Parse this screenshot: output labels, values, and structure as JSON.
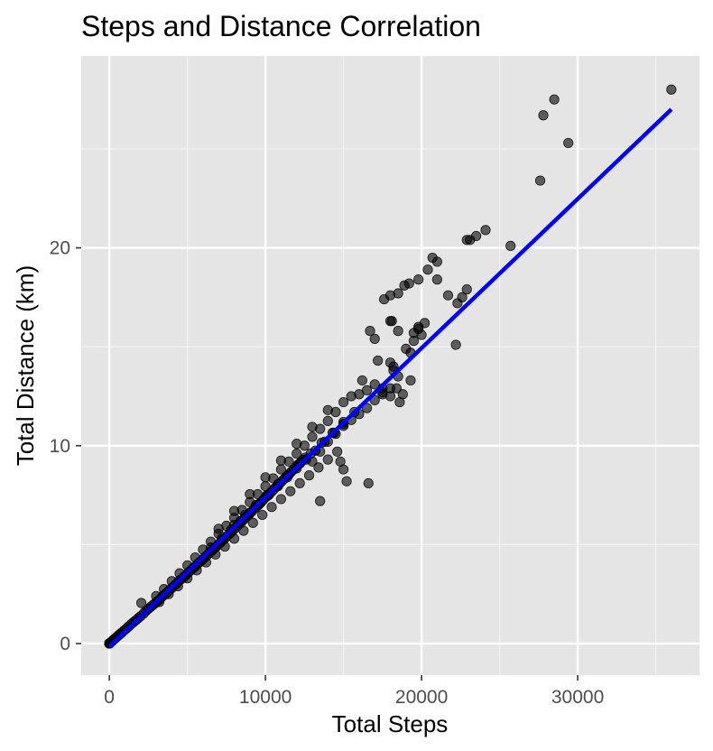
{
  "chart_data": {
    "type": "scatter",
    "title": "Steps and Distance Correlation",
    "xlabel": "Total Steps",
    "ylabel": "Total Distance (km)",
    "xlim": [
      -1800,
      37800
    ],
    "ylim": [
      -1.6,
      29.7
    ],
    "x_ticks": [
      0,
      10000,
      20000,
      30000
    ],
    "x_tick_labels": [
      "0",
      "10000",
      "20000",
      "30000"
    ],
    "y_ticks": [
      0,
      10,
      20
    ],
    "y_tick_labels": [
      "0",
      "10",
      "20"
    ],
    "grid": true,
    "legend": "none",
    "point_color": "#000000",
    "point_opacity": 0.6,
    "trend_line": {
      "color": "#0000ff",
      "start": [
        0,
        -0.15
      ],
      "end": [
        36000,
        27.0
      ]
    },
    "points": [
      [
        0,
        0
      ],
      [
        0,
        0
      ],
      [
        0,
        0
      ],
      [
        0,
        0
      ],
      [
        0,
        0
      ],
      [
        0,
        0
      ],
      [
        0,
        0
      ],
      [
        0,
        0
      ],
      [
        0,
        0
      ],
      [
        0,
        0
      ],
      [
        0,
        0
      ],
      [
        0,
        0
      ],
      [
        100,
        0.07
      ],
      [
        180,
        0.12
      ],
      [
        250,
        0.18
      ],
      [
        320,
        0.22
      ],
      [
        400,
        0.28
      ],
      [
        500,
        0.35
      ],
      [
        600,
        0.42
      ],
      [
        700,
        0.49
      ],
      [
        800,
        0.55
      ],
      [
        950,
        0.66
      ],
      [
        1100,
        0.76
      ],
      [
        1250,
        0.87
      ],
      [
        1400,
        0.98
      ],
      [
        1550,
        1.08
      ],
      [
        1700,
        1.18
      ],
      [
        1850,
        1.28
      ],
      [
        2000,
        1.38
      ],
      [
        2050,
        2.05
      ],
      [
        2200,
        1.52
      ],
      [
        2350,
        1.65
      ],
      [
        2500,
        1.75
      ],
      [
        2650,
        1.85
      ],
      [
        2800,
        1.95
      ],
      [
        2950,
        2.05
      ],
      [
        3100,
        2.15
      ],
      [
        3250,
        2.25
      ],
      [
        3400,
        2.38
      ],
      [
        3550,
        2.48
      ],
      [
        3700,
        2.58
      ],
      [
        3850,
        2.7
      ],
      [
        4000,
        2.8
      ],
      [
        4150,
        2.92
      ],
      [
        4300,
        3.02
      ],
      [
        4450,
        3.15
      ],
      [
        4600,
        3.25
      ],
      [
        4750,
        3.35
      ],
      [
        4900,
        3.45
      ],
      [
        5050,
        3.58
      ],
      [
        5200,
        3.68
      ],
      [
        5350,
        3.8
      ],
      [
        5500,
        3.9
      ],
      [
        5650,
        4.02
      ],
      [
        5800,
        4.12
      ],
      [
        5950,
        4.22
      ],
      [
        6100,
        4.35
      ],
      [
        6250,
        4.45
      ],
      [
        6400,
        4.58
      ],
      [
        6550,
        4.68
      ],
      [
        6700,
        4.8
      ],
      [
        6850,
        4.9
      ],
      [
        7000,
        5.02
      ],
      [
        7150,
        5.12
      ],
      [
        7300,
        5.25
      ],
      [
        7450,
        5.35
      ],
      [
        7600,
        5.48
      ],
      [
        7750,
        5.58
      ],
      [
        7900,
        5.7
      ],
      [
        8050,
        5.82
      ],
      [
        8200,
        5.95
      ],
      [
        8350,
        6.05
      ],
      [
        8500,
        6.18
      ],
      [
        8650,
        6.3
      ],
      [
        8800,
        6.42
      ],
      [
        8950,
        6.52
      ],
      [
        9100,
        6.65
      ],
      [
        9250,
        6.78
      ],
      [
        9400,
        6.9
      ],
      [
        9550,
        7.0
      ],
      [
        9700,
        7.12
      ],
      [
        9850,
        7.25
      ],
      [
        10000,
        7.38
      ],
      [
        10150,
        7.48
      ],
      [
        10300,
        7.6
      ],
      [
        10450,
        7.72
      ],
      [
        10600,
        7.85
      ],
      [
        10750,
        7.95
      ],
      [
        10900,
        8.08
      ],
      [
        11050,
        8.2
      ],
      [
        11200,
        8.32
      ],
      [
        11350,
        8.45
      ],
      [
        11500,
        8.55
      ],
      [
        11650,
        8.68
      ],
      [
        11800,
        8.8
      ],
      [
        11950,
        8.92
      ],
      [
        12100,
        9.05
      ],
      [
        12250,
        9.15
      ],
      [
        12400,
        9.28
      ],
      [
        12550,
        9.4
      ],
      [
        3000,
        2.4
      ],
      [
        3500,
        2.75
      ],
      [
        4000,
        3.15
      ],
      [
        4500,
        3.55
      ],
      [
        5000,
        3.95
      ],
      [
        5500,
        4.35
      ],
      [
        6000,
        4.75
      ],
      [
        6500,
        5.15
      ],
      [
        7000,
        5.55
      ],
      [
        7500,
        5.95
      ],
      [
        8000,
        6.35
      ],
      [
        8500,
        6.75
      ],
      [
        9000,
        7.15
      ],
      [
        9500,
        7.55
      ],
      [
        10000,
        7.95
      ],
      [
        10500,
        8.35
      ],
      [
        11000,
        8.8
      ],
      [
        11500,
        9.2
      ],
      [
        12000,
        9.6
      ],
      [
        12500,
        10.0
      ],
      [
        13000,
        10.45
      ],
      [
        13500,
        10.85
      ],
      [
        14000,
        11.25
      ],
      [
        14500,
        11.7
      ],
      [
        3200,
        2.1
      ],
      [
        3800,
        2.5
      ],
      [
        4400,
        2.9
      ],
      [
        5000,
        3.3
      ],
      [
        5600,
        3.7
      ],
      [
        6200,
        4.1
      ],
      [
        6800,
        4.5
      ],
      [
        7400,
        4.9
      ],
      [
        8000,
        5.3
      ],
      [
        8600,
        5.7
      ],
      [
        9200,
        6.1
      ],
      [
        9800,
        6.5
      ],
      [
        10400,
        6.9
      ],
      [
        11000,
        7.3
      ],
      [
        11600,
        7.7
      ],
      [
        12200,
        8.1
      ],
      [
        12800,
        8.5
      ],
      [
        13400,
        8.9
      ],
      [
        14000,
        9.3
      ],
      [
        14600,
        9.7
      ],
      [
        6500,
        4.85
      ],
      [
        7200,
        5.3
      ],
      [
        7800,
        5.75
      ],
      [
        8400,
        6.2
      ],
      [
        9000,
        6.6
      ],
      [
        9600,
        7.05
      ],
      [
        10200,
        7.5
      ],
      [
        10800,
        7.95
      ],
      [
        11400,
        8.4
      ],
      [
        12000,
        8.85
      ],
      [
        12600,
        9.3
      ],
      [
        13200,
        9.75
      ],
      [
        13800,
        10.2
      ],
      [
        14400,
        10.65
      ],
      [
        15000,
        11.1
      ],
      [
        8000,
        6.0
      ],
      [
        8700,
        6.5
      ],
      [
        9400,
        7.0
      ],
      [
        10100,
        7.5
      ],
      [
        10800,
        8.05
      ],
      [
        11500,
        8.55
      ],
      [
        12200,
        9.1
      ],
      [
        12900,
        9.6
      ],
      [
        13600,
        10.15
      ],
      [
        14300,
        10.65
      ],
      [
        15000,
        11.2
      ],
      [
        15700,
        11.7
      ],
      [
        7000,
        5.8
      ],
      [
        8000,
        6.7
      ],
      [
        9000,
        7.55
      ],
      [
        10000,
        8.4
      ],
      [
        11000,
        9.25
      ],
      [
        12000,
        10.1
      ],
      [
        13000,
        10.95
      ],
      [
        14000,
        11.8
      ],
      [
        15000,
        12.2
      ],
      [
        15500,
        12.5
      ],
      [
        16000,
        12.6
      ],
      [
        16500,
        12.8
      ],
      [
        16200,
        13.3
      ],
      [
        17000,
        13.1
      ],
      [
        17500,
        12.9
      ],
      [
        13000,
        9.2
      ],
      [
        13500,
        9.7
      ],
      [
        14000,
        10.2
      ],
      [
        14500,
        10.6
      ],
      [
        15000,
        11.0
      ],
      [
        15500,
        11.3
      ],
      [
        16000,
        11.6
      ],
      [
        16500,
        11.9
      ],
      [
        17000,
        12.3
      ],
      [
        17500,
        12.6
      ],
      [
        18000,
        12.9
      ],
      [
        18200,
        14.0
      ],
      [
        18500,
        13.5
      ],
      [
        18000,
        14.2
      ],
      [
        13500,
        7.2
      ],
      [
        15200,
        8.2
      ],
      [
        16600,
        8.1
      ],
      [
        15000,
        8.8
      ],
      [
        14800,
        9.2
      ],
      [
        17200,
        14.3
      ],
      [
        17000,
        15.4
      ],
      [
        16700,
        15.8
      ],
      [
        18000,
        16.3
      ],
      [
        18100,
        16.3
      ],
      [
        18500,
        15.8
      ],
      [
        19000,
        14.9
      ],
      [
        19300,
        14.7
      ],
      [
        19500,
        15.3
      ],
      [
        19500,
        15.7
      ],
      [
        19800,
        15.9
      ],
      [
        20000,
        15.6
      ],
      [
        20200,
        16.2
      ],
      [
        19800,
        16.0
      ],
      [
        17600,
        17.4
      ],
      [
        18000,
        17.6
      ],
      [
        18500,
        17.7
      ],
      [
        18900,
        18.1
      ],
      [
        19200,
        18.2
      ],
      [
        19800,
        18.4
      ],
      [
        20400,
        18.9
      ],
      [
        20700,
        19.5
      ],
      [
        21000,
        19.3
      ],
      [
        21000,
        18.4
      ],
      [
        21700,
        17.6
      ],
      [
        22200,
        15.1
      ],
      [
        22300,
        17.2
      ],
      [
        22600,
        17.5
      ],
      [
        22900,
        17.9
      ],
      [
        22900,
        20.4
      ],
      [
        23100,
        20.4
      ],
      [
        23500,
        20.6
      ],
      [
        24100,
        20.9
      ],
      [
        25700,
        20.1
      ],
      [
        17500,
        12.7
      ],
      [
        18000,
        12.5
      ],
      [
        18400,
        12.9
      ],
      [
        18800,
        12.6
      ],
      [
        19300,
        13.3
      ],
      [
        18600,
        12.2
      ],
      [
        18200,
        13.8
      ],
      [
        27600,
        23.4
      ],
      [
        27800,
        26.7
      ],
      [
        28500,
        27.5
      ],
      [
        29400,
        25.3
      ],
      [
        36000,
        28.0
      ]
    ]
  }
}
